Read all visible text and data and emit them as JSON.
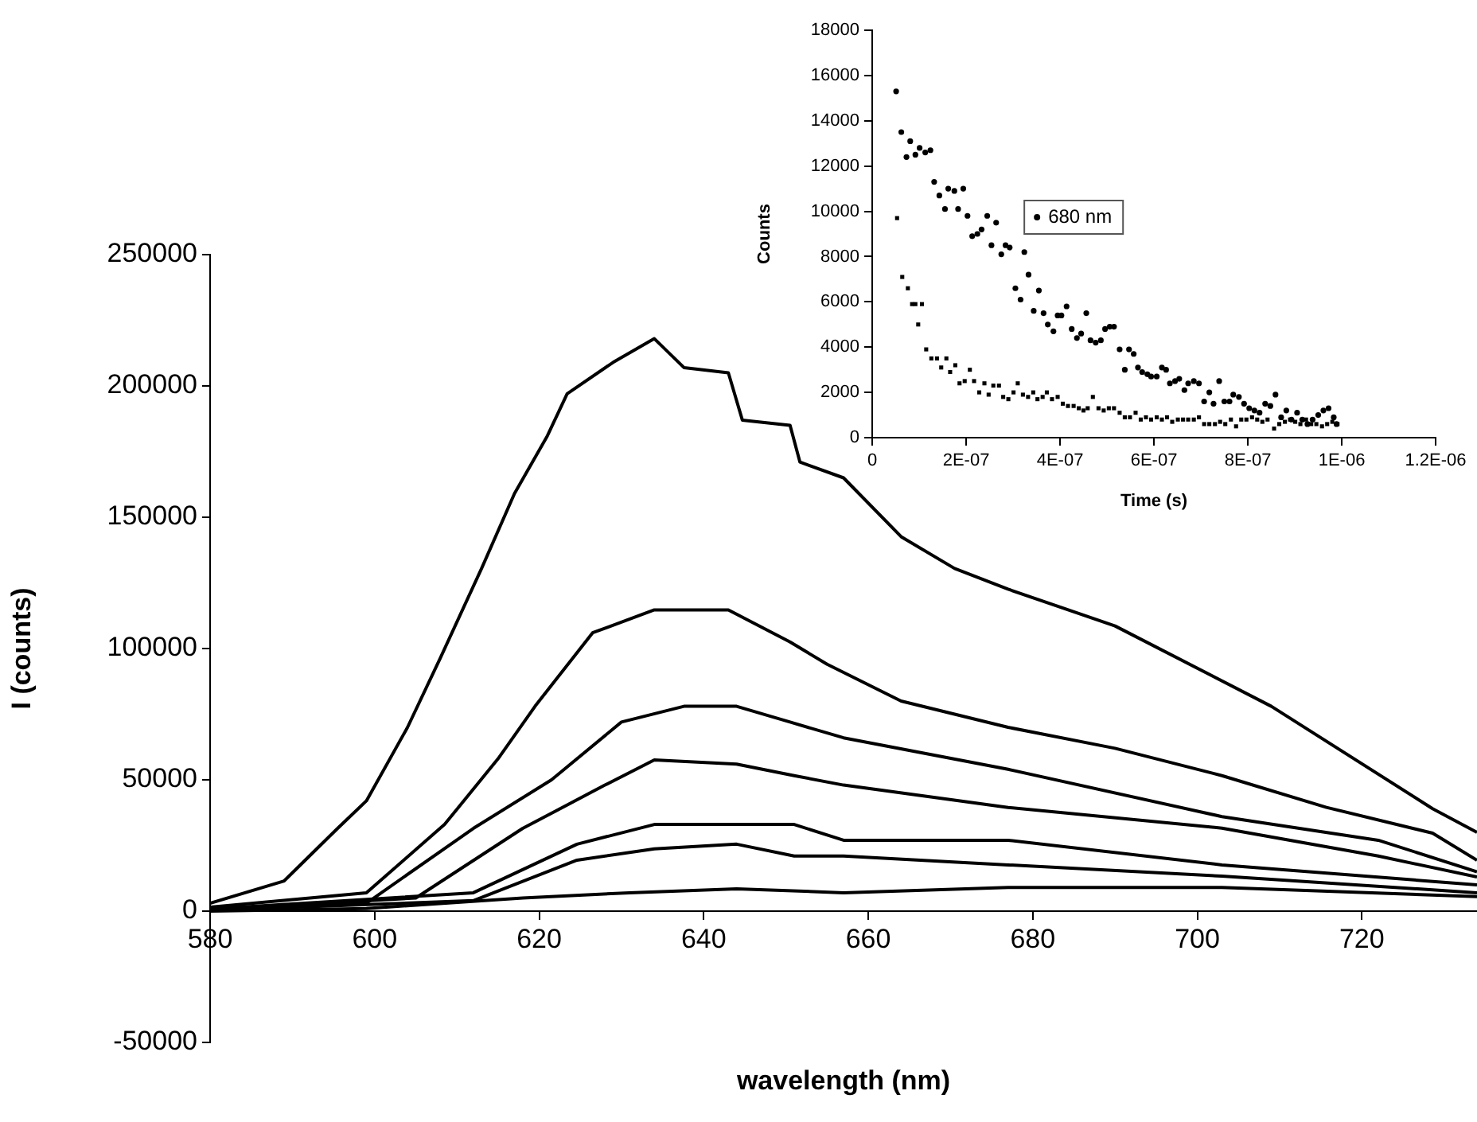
{
  "chart_data": [
    {
      "type": "line",
      "xlabel": "wavelength (nm)",
      "ylabel": "I (counts)",
      "xlim": [
        580,
        734
      ],
      "xticks": [
        580,
        600,
        620,
        640,
        660,
        680,
        700,
        720
      ],
      "ylim": [
        -50000,
        250000
      ],
      "yticks": [
        -50000,
        0,
        50000,
        100000,
        150000,
        200000,
        250000
      ],
      "marker": "none",
      "line_style": "solid",
      "series": [
        {
          "color": "#000000",
          "x": [
            580,
            589,
            595.5,
            599,
            604,
            608,
            613,
            617,
            621,
            623.4,
            629,
            634,
            637.6,
            643,
            644.7,
            650.5,
            651.7,
            657,
            664,
            670.5,
            677,
            690,
            709,
            728.6,
            734
          ],
          "values": [
            3000,
            11500,
            31500,
            42000,
            70000,
            96500,
            130500,
            159000,
            181000,
            197000,
            209000,
            218000,
            207000,
            205000,
            187000,
            185000,
            171000,
            165000,
            142600,
            130500,
            122600,
            108600,
            78000,
            39000,
            30000
          ]
        },
        {
          "color": "#000000",
          "x": [
            580,
            599,
            608.5,
            615,
            619.5,
            626.5,
            634,
            643,
            650.5,
            655,
            664,
            677,
            690,
            703,
            715.7,
            728.6,
            734
          ],
          "values": [
            1500,
            7000,
            33000,
            58000,
            78000,
            106000,
            114700,
            114700,
            102500,
            94000,
            80000,
            70000,
            62000,
            51600,
            39500,
            29700,
            19400
          ]
        },
        {
          "color": "#000000",
          "x": [
            580,
            599,
            612,
            621.5,
            630,
            637.6,
            644,
            650.5,
            657,
            677,
            703,
            722,
            734
          ],
          "values": [
            1000,
            3000,
            31500,
            50000,
            72000,
            78000,
            78000,
            72000,
            66000,
            54000,
            36000,
            27000,
            15000
          ]
        },
        {
          "color": "#000000",
          "x": [
            580,
            605,
            618,
            628,
            634,
            644,
            651,
            657,
            677,
            703,
            722,
            734
          ],
          "values": [
            600,
            5000,
            31500,
            48000,
            57600,
            56000,
            51600,
            48000,
            39500,
            31600,
            21000,
            13000
          ]
        },
        {
          "color": "#000000",
          "x": [
            580,
            612,
            624.6,
            634,
            644,
            651,
            657,
            677,
            703,
            734
          ],
          "values": [
            800,
            7000,
            25500,
            33000,
            33000,
            33000,
            27000,
            27000,
            17600,
            10000
          ]
        },
        {
          "color": "#000000",
          "x": [
            580,
            612,
            624.6,
            634,
            644,
            651,
            657,
            677,
            703,
            734
          ],
          "values": [
            300,
            4000,
            19400,
            23700,
            25500,
            21000,
            21000,
            17600,
            13300,
            7000
          ]
        },
        {
          "color": "#000000",
          "x": [
            580,
            599,
            618,
            631,
            644,
            657,
            677,
            703,
            734
          ],
          "values": [
            0,
            1000,
            5000,
            7000,
            8500,
            7000,
            9000,
            9000,
            5500
          ]
        }
      ]
    },
    {
      "type": "scatter",
      "xlabel": "Time (s)",
      "ylabel": "Counts",
      "xlim": [
        0,
        1.2e-06
      ],
      "xticks": [
        0,
        {
          "value": 2e-07,
          "label": "2E-07"
        },
        {
          "value": 4e-07,
          "label": "4E-07"
        },
        {
          "value": 6e-07,
          "label": "6E-07"
        },
        {
          "value": 8e-07,
          "label": "8E-07"
        },
        {
          "value": 1e-06,
          "label": "1E-06"
        },
        {
          "value": 1.2e-06,
          "label": "1.2E-06"
        }
      ],
      "ylim": [
        0,
        18000
      ],
      "yticks": [
        0,
        2000,
        4000,
        6000,
        8000,
        10000,
        12000,
        14000,
        16000,
        18000
      ],
      "legend": "left",
      "series": [
        {
          "name": "680 nm",
          "color": "#000000",
          "marker": "circle",
          "x": [
            5.1e-08,
            6.2e-08,
            7.3e-08,
            8.1e-08,
            9.2e-08,
            1.01e-07,
            1.13e-07,
            1.24e-07,
            1.32e-07,
            1.43e-07,
            1.55e-07,
            1.62e-07,
            1.75e-07,
            1.83e-07,
            1.94e-07,
            2.03e-07,
            2.13e-07,
            2.24e-07,
            2.33e-07,
            2.45e-07,
            2.54e-07,
            2.64e-07,
            2.75e-07,
            2.84e-07,
            2.93e-07,
            3.05e-07,
            3.16e-07,
            3.24e-07,
            3.33e-07,
            3.44e-07,
            3.55e-07,
            3.65e-07,
            3.74e-07,
            3.86e-07,
            3.95e-07,
            4.03e-07,
            4.14e-07,
            4.25e-07,
            4.36e-07,
            4.45e-07,
            4.56e-07,
            4.65e-07,
            4.76e-07,
            4.87e-07,
            4.96e-07,
            5.06e-07,
            5.15e-07,
            5.27e-07,
            5.38e-07,
            5.47e-07,
            5.57e-07,
            5.66e-07,
            5.75e-07,
            5.86e-07,
            5.94e-07,
            6.06e-07,
            6.17e-07,
            6.26e-07,
            6.34e-07,
            6.45e-07,
            6.54e-07,
            6.65e-07,
            6.73e-07,
            6.85e-07,
            6.96e-07,
            7.07e-07,
            7.18e-07,
            7.27e-07,
            7.39e-07,
            7.5e-07,
            7.61e-07,
            7.69e-07,
            7.81e-07,
            7.92e-07,
            8.03e-07,
            8.14e-07,
            8.25e-07,
            8.37e-07,
            8.48e-07,
            8.59e-07,
            8.71e-07,
            8.82e-07,
            8.93e-07,
            9.05e-07,
            9.16e-07,
            9.27e-07,
            9.38e-07,
            9.5e-07,
            9.61e-07,
            9.72e-07,
            9.83e-07,
            9.89e-07
          ],
          "values": [
            15300,
            13500,
            12400,
            13100,
            12500,
            12800,
            12600,
            12700,
            11300,
            10700,
            10100,
            11000,
            10900,
            10100,
            11000,
            9800,
            8900,
            9000,
            9200,
            9800,
            8500,
            9500,
            8100,
            8500,
            8400,
            6600,
            6100,
            8200,
            7200,
            5600,
            6500,
            5500,
            5000,
            4700,
            5400,
            5400,
            5800,
            4800,
            4400,
            4600,
            5500,
            4300,
            4200,
            4300,
            4800,
            4900,
            4900,
            3900,
            3000,
            3900,
            3700,
            3100,
            2900,
            2800,
            2700,
            2700,
            3100,
            3000,
            2400,
            2500,
            2600,
            2100,
            2400,
            2500,
            2400,
            1600,
            2000,
            1500,
            2500,
            1600,
            1600,
            1900,
            1800,
            1500,
            1300,
            1200,
            1100,
            1500,
            1400,
            1900,
            900,
            1200,
            800,
            1100,
            800,
            600,
            800,
            1000,
            1200,
            1300,
            900,
            600
          ]
        },
        {
          "color": "#000000",
          "marker": "square",
          "x": [
            5.3e-08,
            6.4e-08,
            7.6e-08,
            8.5e-08,
            9.2e-08,
            9.8e-08,
            1.06e-07,
            1.15e-07,
            1.26e-07,
            1.38e-07,
            1.47e-07,
            1.58e-07,
            1.66e-07,
            1.77e-07,
            1.86e-07,
            1.97e-07,
            2.08e-07,
            2.17e-07,
            2.28e-07,
            2.39e-07,
            2.48e-07,
            2.58e-07,
            2.7e-07,
            2.79e-07,
            2.9e-07,
            3.01e-07,
            3.1e-07,
            3.21e-07,
            3.32e-07,
            3.43e-07,
            3.52e-07,
            3.63e-07,
            3.72e-07,
            3.83e-07,
            3.95e-07,
            4.06e-07,
            4.17e-07,
            4.29e-07,
            4.4e-07,
            4.5e-07,
            4.59e-07,
            4.7e-07,
            4.82e-07,
            4.93e-07,
            5.04e-07,
            5.15e-07,
            5.27e-07,
            5.38e-07,
            5.49e-07,
            5.61e-07,
            5.72e-07,
            5.83e-07,
            5.94e-07,
            6.06e-07,
            6.17e-07,
            6.28e-07,
            6.39e-07,
            6.51e-07,
            6.62e-07,
            6.73e-07,
            6.85e-07,
            6.96e-07,
            7.07e-07,
            7.18e-07,
            7.3e-07,
            7.41e-07,
            7.52e-07,
            7.64e-07,
            7.75e-07,
            7.86e-07,
            7.97e-07,
            8.09e-07,
            8.2e-07,
            8.31e-07,
            8.42e-07,
            8.56e-07,
            8.67e-07,
            8.79e-07,
            8.9e-07,
            9.01e-07,
            9.12e-07,
            9.24e-07,
            9.35e-07,
            9.46e-07,
            9.58e-07,
            9.69e-07,
            9.8e-07,
            9.91e-07
          ],
          "values": [
            9700,
            7100,
            6600,
            5900,
            5900,
            5000,
            5900,
            3900,
            3500,
            3500,
            3100,
            3500,
            2900,
            3200,
            2400,
            2500,
            3000,
            2500,
            2000,
            2400,
            1900,
            2300,
            2300,
            1800,
            1700,
            2000,
            2400,
            1900,
            1800,
            2000,
            1700,
            1800,
            2000,
            1700,
            1800,
            1500,
            1400,
            1400,
            1300,
            1200,
            1300,
            1800,
            1300,
            1200,
            1300,
            1300,
            1100,
            900,
            900,
            1100,
            800,
            900,
            800,
            900,
            800,
            900,
            700,
            800,
            800,
            800,
            800,
            900,
            600,
            600,
            600,
            700,
            600,
            800,
            500,
            800,
            800,
            900,
            800,
            700,
            800,
            400,
            600,
            700,
            800,
            700,
            600,
            800,
            600,
            600,
            500,
            600,
            700,
            600
          ]
        }
      ]
    }
  ]
}
